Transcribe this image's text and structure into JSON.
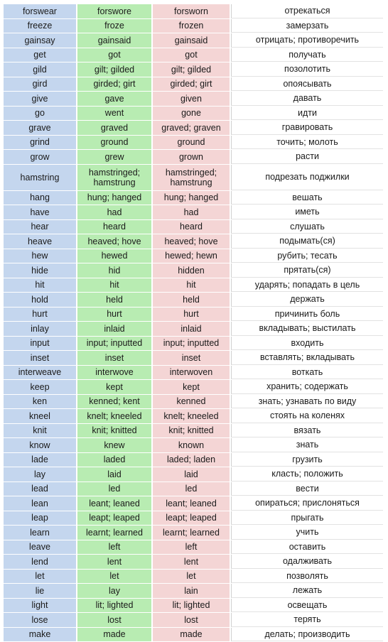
{
  "rows": [
    [
      "forswear",
      "forswore",
      "forsworn",
      "отрекаться"
    ],
    [
      "freeze",
      "froze",
      "frozen",
      "замерзать"
    ],
    [
      "gainsay",
      "gainsaid",
      "gainsaid",
      "отрицать; противоречить"
    ],
    [
      "get",
      "got",
      "got",
      "получать"
    ],
    [
      "gild",
      "gilt; gilded",
      "gilt; gilded",
      "позолотить"
    ],
    [
      "gird",
      "girded; girt",
      "girded; girt",
      "опоясывать"
    ],
    [
      "give",
      "gave",
      "given",
      "давать"
    ],
    [
      "go",
      "went",
      "gone",
      "идти"
    ],
    [
      "grave",
      "graved",
      "graved; graven",
      "гравировать"
    ],
    [
      "grind",
      "ground",
      "ground",
      "точить; молоть"
    ],
    [
      "grow",
      "grew",
      "grown",
      "расти"
    ],
    [
      "hamstring",
      "hamstringed; hamstrung",
      "hamstringed; hamstrung",
      "подрезать поджилки"
    ],
    [
      "hang",
      "hung; hanged",
      "hung; hanged",
      "вешать"
    ],
    [
      "have",
      "had",
      "had",
      "иметь"
    ],
    [
      "hear",
      "heard",
      "heard",
      "слушать"
    ],
    [
      "heave",
      "heaved; hove",
      "heaved; hove",
      "подымать(ся)"
    ],
    [
      "hew",
      "hewed",
      "hewed; hewn",
      "рубить; тесать"
    ],
    [
      "hide",
      "hid",
      "hidden",
      "прятать(ся)"
    ],
    [
      "hit",
      "hit",
      "hit",
      "ударять; попадать в цель"
    ],
    [
      "hold",
      "held",
      "held",
      "держать"
    ],
    [
      "hurt",
      "hurt",
      "hurt",
      "причинить боль"
    ],
    [
      "inlay",
      "inlaid",
      "inlaid",
      "вкладывать; выстилать"
    ],
    [
      "input",
      "input; inputted",
      "input; inputted",
      "входить"
    ],
    [
      "inset",
      "inset",
      "inset",
      "вставлять; вкладывать"
    ],
    [
      "interweave",
      "interwove",
      "interwoven",
      "воткать"
    ],
    [
      "keep",
      "kept",
      "kept",
      "хранить; содержать"
    ],
    [
      "ken",
      "kenned; kent",
      "kenned",
      "знать; узнавать по виду"
    ],
    [
      "kneel",
      "knelt; kneeled",
      "knelt; kneeled",
      "стоять на коленях"
    ],
    [
      "knit",
      "knit; knitted",
      "knit; knitted",
      "вязать"
    ],
    [
      "know",
      "knew",
      "known",
      "знать"
    ],
    [
      "lade",
      "laded",
      "laded; laden",
      "грузить"
    ],
    [
      "lay",
      "laid",
      "laid",
      "класть; положить"
    ],
    [
      "lead",
      "led",
      "led",
      "вести"
    ],
    [
      "lean",
      "leant; leaned",
      "leant; leaned",
      "опираться; прислоняться"
    ],
    [
      "leap",
      "leapt; leaped",
      "leapt; leaped",
      "прыгать"
    ],
    [
      "learn",
      "learnt; learned",
      "learnt; learned",
      "учить"
    ],
    [
      "leave",
      "left",
      "left",
      "оставить"
    ],
    [
      "lend",
      "lent",
      "lent",
      "одалживать"
    ],
    [
      "let",
      "let",
      "let",
      "позволять"
    ],
    [
      "lie",
      "lay",
      "lain",
      "лежать"
    ],
    [
      "light",
      "lit; lighted",
      "lit; lighted",
      "освещать"
    ],
    [
      "lose",
      "lost",
      "lost",
      "терять"
    ],
    [
      "make",
      "made",
      "made",
      "делать; производить"
    ]
  ],
  "colors": {
    "infinitive": "#c4d6ee",
    "past": "#b8ecb2",
    "participle": "#f4d5d5",
    "translation": "#ffffff"
  }
}
